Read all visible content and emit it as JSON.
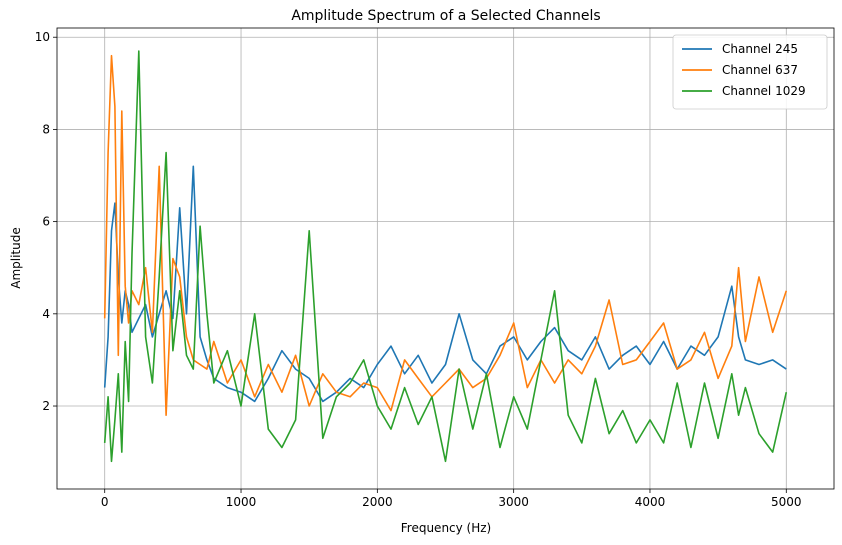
{
  "chart_data": {
    "type": "line",
    "title": "Amplitude Spectrum of a Selected Channels",
    "xlabel": "Frequency (Hz)",
    "ylabel": "Amplitude",
    "xlim": [
      -350,
      5350
    ],
    "ylim": [
      0.2,
      10.2
    ],
    "xticks": [
      0,
      1000,
      2000,
      3000,
      4000,
      5000
    ],
    "yticks": [
      2,
      4,
      6,
      8,
      10
    ],
    "grid": true,
    "legend_position": "top-right",
    "series": [
      {
        "name": "Channel 245",
        "color": "#1f77b4",
        "x": [
          0,
          25,
          50,
          75,
          100,
          125,
          150,
          175,
          200,
          250,
          300,
          350,
          400,
          450,
          500,
          550,
          600,
          650,
          700,
          750,
          800,
          900,
          1000,
          1100,
          1200,
          1300,
          1400,
          1500,
          1600,
          1700,
          1800,
          1900,
          2000,
          2100,
          2200,
          2300,
          2400,
          2500,
          2600,
          2700,
          2800,
          2900,
          3000,
          3100,
          3200,
          3300,
          3400,
          3500,
          3600,
          3700,
          3800,
          3900,
          4000,
          4100,
          4200,
          4300,
          4400,
          4500,
          4600,
          4650,
          4700,
          4800,
          4900,
          5000
        ],
        "values": [
          2.4,
          3.5,
          5.8,
          6.4,
          4.8,
          3.8,
          4.5,
          4.2,
          3.6,
          3.9,
          4.2,
          3.5,
          4.0,
          4.5,
          3.9,
          6.3,
          4.0,
          7.2,
          3.5,
          3.0,
          2.6,
          2.4,
          2.3,
          2.1,
          2.6,
          3.2,
          2.8,
          2.6,
          2.1,
          2.3,
          2.6,
          2.4,
          2.9,
          3.3,
          2.7,
          3.1,
          2.5,
          2.9,
          4.0,
          3.0,
          2.7,
          3.3,
          3.5,
          3.0,
          3.4,
          3.7,
          3.2,
          3.0,
          3.5,
          2.8,
          3.1,
          3.3,
          2.9,
          3.4,
          2.8,
          3.3,
          3.1,
          3.5,
          4.6,
          3.5,
          3.0,
          2.9,
          3.0,
          2.8
        ]
      },
      {
        "name": "Channel 637",
        "color": "#ff7f0e",
        "x": [
          0,
          25,
          50,
          75,
          100,
          125,
          150,
          175,
          200,
          250,
          300,
          350,
          400,
          450,
          500,
          550,
          600,
          650,
          700,
          750,
          800,
          900,
          1000,
          1100,
          1200,
          1300,
          1400,
          1500,
          1600,
          1700,
          1800,
          1900,
          2000,
          2100,
          2200,
          2300,
          2400,
          2500,
          2600,
          2700,
          2800,
          2900,
          3000,
          3100,
          3200,
          3300,
          3400,
          3500,
          3600,
          3700,
          3800,
          3900,
          4000,
          4100,
          4200,
          4300,
          4400,
          4500,
          4600,
          4650,
          4700,
          4800,
          4900,
          5000
        ],
        "values": [
          3.9,
          7.5,
          9.6,
          8.5,
          3.1,
          8.4,
          4.6,
          3.8,
          4.5,
          4.2,
          5.0,
          3.6,
          7.2,
          1.8,
          5.2,
          4.8,
          3.5,
          3.0,
          2.9,
          2.8,
          3.4,
          2.5,
          3.0,
          2.2,
          2.9,
          2.3,
          3.1,
          2.0,
          2.7,
          2.3,
          2.2,
          2.5,
          2.4,
          1.9,
          3.0,
          2.6,
          2.2,
          2.5,
          2.8,
          2.4,
          2.6,
          3.1,
          3.8,
          2.4,
          3.0,
          2.5,
          3.0,
          2.7,
          3.3,
          4.3,
          2.9,
          3.0,
          3.4,
          3.8,
          2.8,
          3.0,
          3.6,
          2.6,
          3.3,
          5.0,
          3.4,
          4.8,
          3.6,
          4.5
        ]
      },
      {
        "name": "Channel 1029",
        "color": "#2ca02c",
        "x": [
          0,
          25,
          50,
          75,
          100,
          125,
          150,
          175,
          200,
          250,
          300,
          350,
          400,
          450,
          500,
          550,
          600,
          650,
          700,
          750,
          800,
          900,
          1000,
          1100,
          1200,
          1300,
          1400,
          1500,
          1600,
          1700,
          1800,
          1900,
          2000,
          2100,
          2200,
          2300,
          2400,
          2500,
          2600,
          2700,
          2800,
          2900,
          3000,
          3100,
          3200,
          3300,
          3400,
          3500,
          3600,
          3700,
          3800,
          3900,
          4000,
          4100,
          4200,
          4300,
          4400,
          4500,
          4600,
          4650,
          4700,
          4800,
          4900,
          5000
        ],
        "values": [
          1.2,
          2.2,
          0.8,
          1.7,
          2.7,
          1.0,
          3.4,
          2.1,
          5.3,
          9.7,
          3.5,
          2.5,
          4.8,
          7.5,
          3.2,
          4.5,
          3.1,
          2.8,
          5.9,
          4.0,
          2.5,
          3.2,
          2.0,
          4.0,
          1.5,
          1.1,
          1.7,
          5.8,
          1.3,
          2.2,
          2.5,
          3.0,
          2.0,
          1.5,
          2.4,
          1.6,
          2.2,
          0.8,
          2.8,
          1.5,
          2.7,
          1.1,
          2.2,
          1.5,
          3.0,
          4.5,
          1.8,
          1.2,
          2.6,
          1.4,
          1.9,
          1.2,
          1.7,
          1.2,
          2.5,
          1.1,
          2.5,
          1.3,
          2.7,
          1.8,
          2.4,
          1.4,
          1.0,
          2.3
        ]
      }
    ]
  }
}
